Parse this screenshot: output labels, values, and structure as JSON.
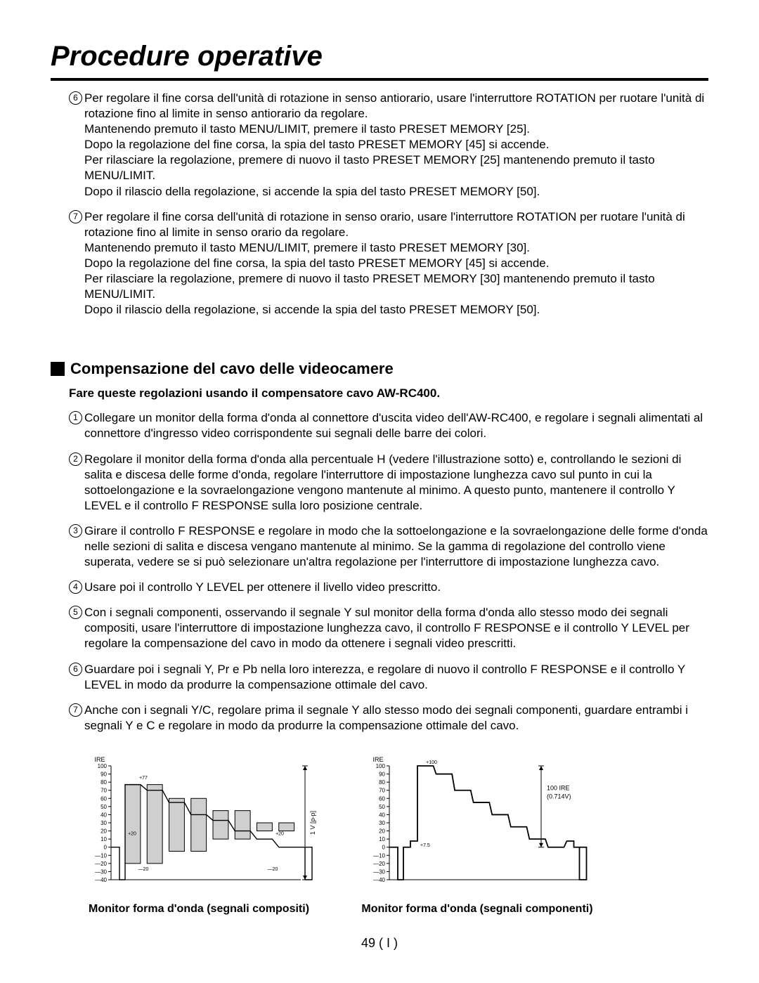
{
  "title": "Procedure operative",
  "steps_top": [
    {
      "num": "6",
      "text": "Per regolare il fine corsa dell'unità di rotazione in senso antiorario, usare l'interruttore ROTATION per ruotare l'unità di rotazione fino al limite in senso antiorario da regolare.\nMantenendo premuto il tasto MENU/LIMIT, premere il tasto PRESET MEMORY [25].\nDopo la regolazione del fine corsa, la spia del tasto PRESET MEMORY [45] si accende.\nPer rilasciare la regolazione, premere di nuovo il tasto PRESET MEMORY [25] mantenendo premuto il tasto MENU/LIMIT.\nDopo il rilascio della regolazione, si accende la spia del tasto PRESET MEMORY [50]."
    },
    {
      "num": "7",
      "text": "Per regolare il fine corsa dell'unità di rotazione in senso orario, usare l'interruttore ROTATION per ruotare l'unità di rotazione fino al limite in senso orario da regolare.\nMantenendo premuto il tasto MENU/LIMIT, premere il tasto PRESET MEMORY [30].\nDopo la regolazione del fine corsa, la spia del tasto PRESET MEMORY [45] si accende.\nPer rilasciare la regolazione, premere di nuovo il tasto PRESET MEMORY [30] mantenendo premuto il tasto MENU/LIMIT.\nDopo il rilascio della regolazione, si accende la spia del tasto PRESET MEMORY [50]."
    }
  ],
  "section2_title": "Compensazione del cavo delle videocamere",
  "section2_sub": "Fare queste regolazioni usando il compensatore cavo AW-RC400.",
  "steps_bottom": [
    {
      "num": "1",
      "text": "Collegare un monitor della forma d'onda al connettore d'uscita video dell'AW-RC400, e regolare i segnali alimentati al connettore d'ingresso video corrispondente sui segnali delle barre dei colori."
    },
    {
      "num": "2",
      "text": "Regolare il monitor della forma d'onda alla percentuale H (vedere l'illustrazione sotto) e, controllando le sezioni di salita e discesa delle forme d'onda, regolare l'interruttore di impostazione lunghezza cavo sul punto in cui la sottoelongazione e la sovraelongazione vengono mantenute al minimo. A questo punto, mantenere il controllo Y LEVEL e il controllo F RESPONSE sulla loro posizione centrale."
    },
    {
      "num": "3",
      "text": "Girare il controllo F RESPONSE e regolare in modo che la sottoelongazione e la sovraelongazione delle forme d'onda nelle sezioni di salita e discesa vengano mantenute al minimo. Se la gamma di regolazione del controllo viene superata, vedere se si può selezionare un'altra regolazione per l'interruttore di impostazione lunghezza cavo."
    },
    {
      "num": "4",
      "text": "Usare poi il controllo Y LEVEL per ottenere il livello video prescritto."
    },
    {
      "num": "5",
      "text": "Con i segnali componenti, osservando il segnale Y sul monitor della forma d'onda allo stesso modo dei segnali compositi, usare l'interruttore di impostazione lunghezza cavo, il controllo F RESPONSE e il controllo Y LEVEL per regolare la compensazione del cavo in modo da ottenere i segnali video prescritti."
    },
    {
      "num": "6",
      "text": "Guardare poi i segnali Y, Pr e Pb nella loro interezza, e regolare di nuovo il controllo F RESPONSE e il controllo Y LEVEL in modo da produrre la compensazione ottimale del cavo."
    },
    {
      "num": "7",
      "text": "Anche con i segnali Y/C, regolare prima il segnale Y allo stesso modo dei segnali componenti, guardare entrambi i segnali Y e C e regolare in modo da produrre la compensazione ottimale del cavo."
    }
  ],
  "chart_left": {
    "caption": "Monitor forma d'onda (segnali compositi)",
    "ire_label": "IRE",
    "y_ticks": [
      "100",
      "90",
      "80",
      "70",
      "60",
      "50",
      "40",
      "30",
      "20",
      "10",
      "0",
      "—10",
      "—20",
      "—30",
      "—40"
    ],
    "annotations": [
      "+77",
      "+20",
      "+20",
      "—20",
      "—20"
    ],
    "side_label": "1 V [p-p]",
    "bar_tops_ire": [
      77,
      77,
      60,
      60,
      45,
      45,
      30,
      30
    ],
    "bar_bottoms_ire": [
      -20,
      -20,
      -5,
      -5,
      10,
      10,
      20,
      20
    ],
    "line_levels_ire": [
      77,
      70,
      55,
      40,
      33,
      20,
      10,
      0
    ],
    "bar_fill": "#cfcfcf",
    "stroke": "#000000"
  },
  "chart_right": {
    "caption": "Monitor forma d'onda (segnali componenti)",
    "ire_label": "IRE",
    "y_ticks": [
      "100",
      "90",
      "80",
      "70",
      "60",
      "50",
      "40",
      "30",
      "20",
      "10",
      "0",
      "—10",
      "—20",
      "—30",
      "—40"
    ],
    "annotations": [
      "+100",
      "+7.5"
    ],
    "side_label_1": "100 IRE",
    "side_label_2": "(0.714V)",
    "line_levels_ire": [
      100,
      90,
      70,
      55,
      40,
      25,
      10,
      0
    ],
    "stroke": "#000000"
  },
  "page_number": "49 ( I )"
}
